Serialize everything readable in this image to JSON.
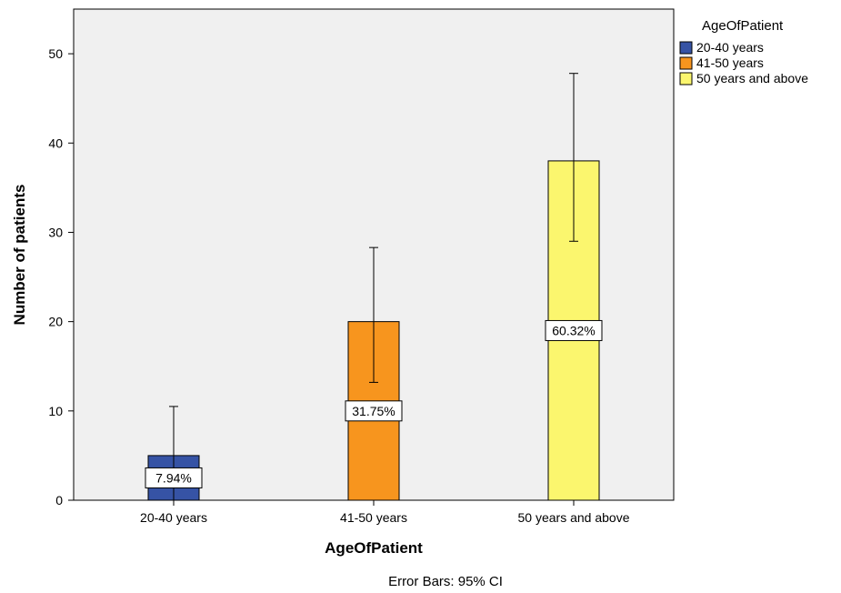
{
  "chart_data": {
    "type": "bar",
    "categories": [
      "20-40 years",
      "41-50 years",
      "50 years and above"
    ],
    "values": [
      5,
      20,
      38
    ],
    "error_bars": [
      {
        "low": 0,
        "high": 10.5
      },
      {
        "low": 13.2,
        "high": 28.3
      },
      {
        "low": 29,
        "high": 47.8
      }
    ],
    "data_labels": [
      "7.94%",
      "31.75%",
      "60.32%"
    ],
    "colors": [
      "#3653a5",
      "#f7951e",
      "#fbf66e"
    ],
    "xlabel": "AgeOfPatient",
    "ylabel": "Number of patients",
    "ylim": [
      0,
      55
    ],
    "yticks": [
      0,
      10,
      20,
      30,
      40,
      50
    ],
    "plot_background": "#f0f0f0",
    "legend": {
      "title": "AgeOfPatient",
      "entries": [
        "20-40 years",
        "41-50 years",
        "50 years and above"
      ],
      "position": "right"
    },
    "footnote": "Error Bars: 95% CI"
  }
}
